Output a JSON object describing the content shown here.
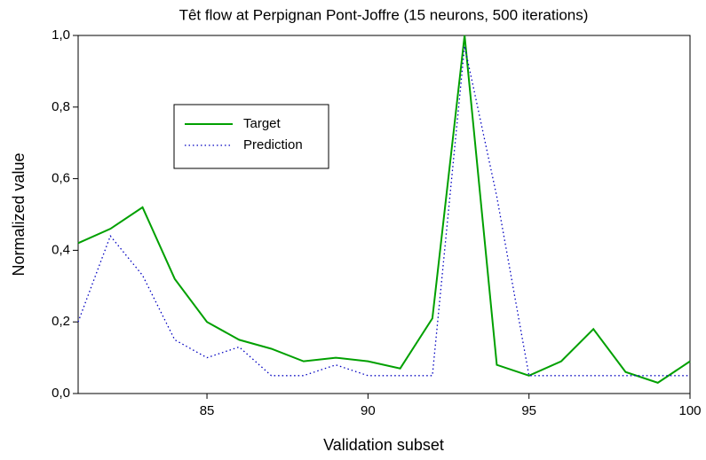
{
  "chart_data": {
    "type": "line",
    "title": "Têt flow at Perpignan Pont-Joffre (15 neurons, 500 iterations)",
    "x_label": "Validation subset",
    "y_label": "Normalized value",
    "x": [
      81,
      82,
      83,
      84,
      85,
      86,
      87,
      88,
      89,
      90,
      91,
      92,
      93,
      94,
      95,
      96,
      97,
      98,
      99,
      100
    ],
    "series": [
      {
        "name": "Target",
        "color": "#00a000",
        "style": "solid",
        "values": [
          0.42,
          0.46,
          0.52,
          0.32,
          0.2,
          0.15,
          0.125,
          0.09,
          0.1,
          0.09,
          0.07,
          0.21,
          1.0,
          0.08,
          0.05,
          0.09,
          0.18,
          0.06,
          0.03,
          0.09
        ]
      },
      {
        "name": "Prediction",
        "color": "#0000c0",
        "style": "dotted",
        "values": [
          0.2,
          0.44,
          0.33,
          0.15,
          0.1,
          0.13,
          0.05,
          0.05,
          0.08,
          0.05,
          0.05,
          0.05,
          0.97,
          0.55,
          0.05,
          0.05,
          0.05,
          0.05,
          0.05,
          0.05
        ]
      }
    ],
    "xlim": [
      81,
      100
    ],
    "xticks": [
      85,
      90,
      95,
      100
    ],
    "ylim": [
      0,
      1
    ],
    "yticks": [
      {
        "value": 0,
        "label": "0,0"
      },
      {
        "value": 0.2,
        "label": "0,2"
      },
      {
        "value": 0.4,
        "label": "0,4"
      },
      {
        "value": 0.6,
        "label": "0,6"
      },
      {
        "value": 0.8,
        "label": "0,8"
      },
      {
        "value": 1,
        "label": "1,0"
      }
    ],
    "legend": "upper left"
  }
}
